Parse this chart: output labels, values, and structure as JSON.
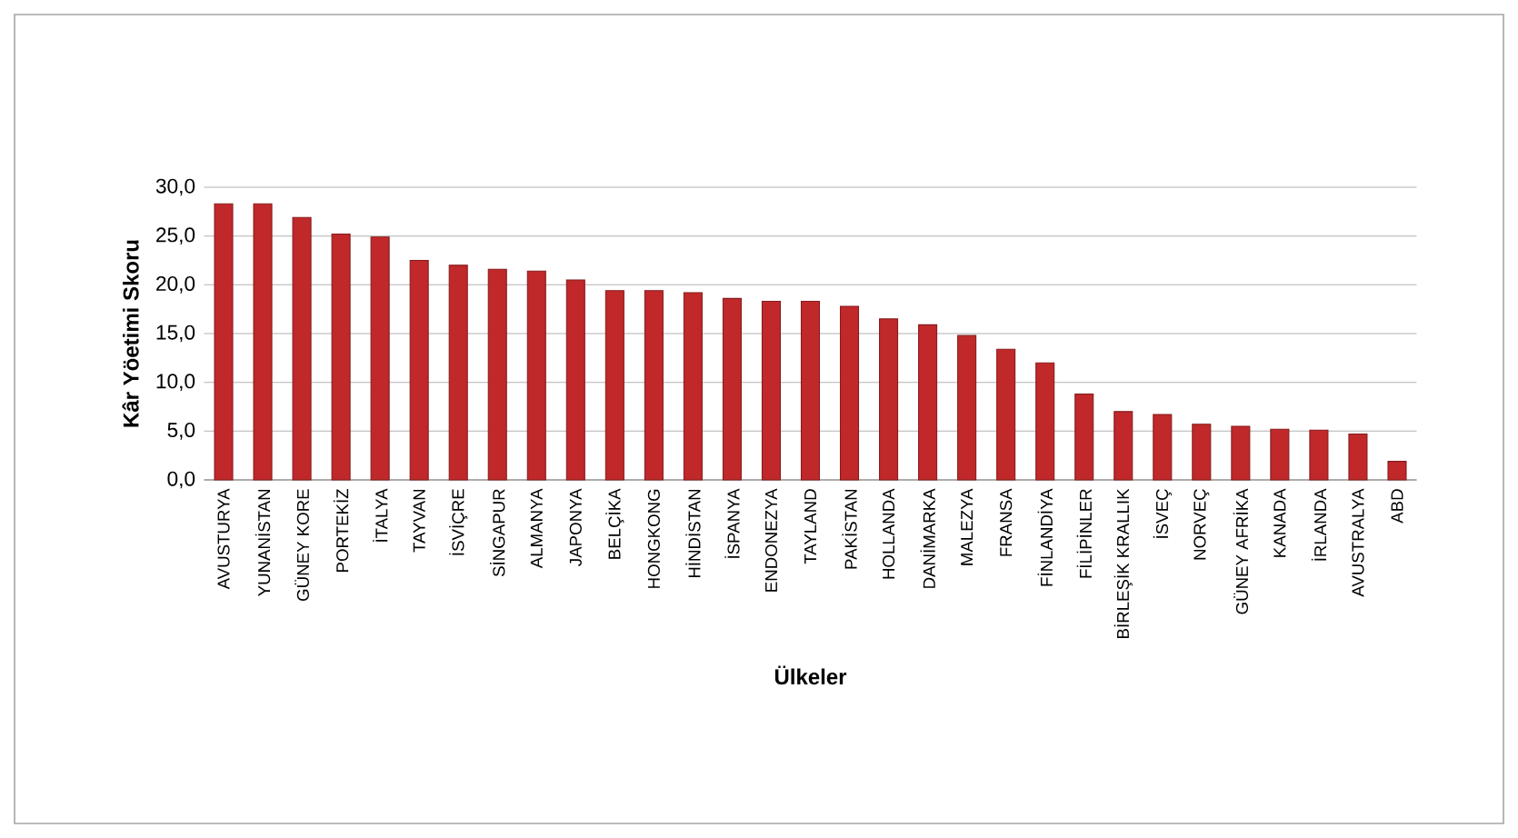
{
  "chart_data": {
    "type": "bar",
    "xlabel": "Ülkeler",
    "ylabel": "Kâr  Yöetimi Skoru",
    "categories": [
      "AVUSTURYA",
      "YUNANİSTAN",
      "GÜNEY KORE",
      "PORTEKİZ",
      "İTALYA",
      "TAYVAN",
      "İSVİÇRE",
      "SİNGAPUR",
      "ALMANYA",
      "JAPONYA",
      "BELÇİKA",
      "HONGKONG",
      "HİNDİSTAN",
      "İSPANYA",
      "ENDONEZYA",
      "TAYLAND",
      "PAKİSTAN",
      "HOLLANDA",
      "DANİMARKA",
      "MALEZYA",
      "FRANSA",
      "FİNLANDİYA",
      "FİLİPİNLER",
      "BİRLEŞİK KRALLIK",
      "İSVEÇ",
      "NORVEÇ",
      "GÜNEY AFRİKA",
      "KANADA",
      "İRLANDA",
      "AVUSTRALYA",
      "ABD"
    ],
    "values": [
      28.3,
      28.3,
      26.9,
      25.2,
      24.9,
      22.5,
      22.0,
      21.6,
      21.4,
      20.5,
      19.4,
      19.4,
      19.2,
      18.6,
      18.3,
      18.3,
      17.8,
      16.5,
      15.9,
      14.8,
      13.4,
      12.0,
      8.8,
      7.0,
      6.7,
      5.7,
      5.5,
      5.2,
      5.1,
      4.7,
      1.9
    ],
    "color": "#c0282a",
    "ylim": [
      0,
      30
    ],
    "yticks": [
      {
        "value": 0,
        "label": "0,0"
      },
      {
        "value": 5,
        "label": "5,0"
      },
      {
        "value": 10,
        "label": "10,0"
      },
      {
        "value": 15,
        "label": "15,0"
      },
      {
        "value": 20,
        "label": "20,0"
      },
      {
        "value": 25,
        "label": "25,0"
      },
      {
        "value": 30,
        "label": "30,0"
      }
    ],
    "grid": "y"
  }
}
